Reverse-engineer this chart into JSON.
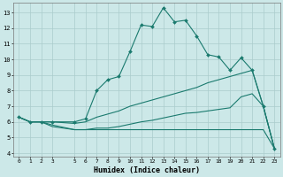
{
  "xlabel": "Humidex (Indice chaleur)",
  "xlim": [
    -0.5,
    23.5
  ],
  "ylim": [
    3.8,
    13.6
  ],
  "xticks": [
    0,
    1,
    2,
    3,
    5,
    6,
    7,
    8,
    9,
    10,
    11,
    12,
    13,
    14,
    15,
    16,
    17,
    18,
    19,
    20,
    21,
    22,
    23
  ],
  "yticks": [
    4,
    5,
    6,
    7,
    8,
    9,
    10,
    11,
    12,
    13
  ],
  "bg_color": "#cce8e8",
  "grid_color": "#aacccc",
  "line_color": "#1a7a6e",
  "line1_x": [
    0,
    1,
    2,
    3,
    5,
    6,
    7,
    8,
    9,
    10,
    11,
    12,
    13,
    14,
    15,
    16,
    17,
    18,
    19,
    20,
    21,
    22,
    23
  ],
  "line1_y": [
    6.3,
    6.0,
    6.0,
    6.0,
    6.0,
    6.2,
    8.0,
    8.7,
    8.9,
    10.5,
    12.2,
    12.1,
    13.3,
    12.4,
    12.5,
    11.5,
    10.3,
    10.15,
    9.3,
    10.1,
    9.3,
    7.0,
    4.3
  ],
  "line2_x": [
    0,
    1,
    2,
    3,
    5,
    6,
    7,
    8,
    9,
    10,
    11,
    12,
    13,
    14,
    15,
    16,
    17,
    18,
    19,
    20,
    21,
    22,
    23
  ],
  "line2_y": [
    6.3,
    6.0,
    6.0,
    6.0,
    5.9,
    6.0,
    6.3,
    6.5,
    6.7,
    7.0,
    7.2,
    7.4,
    7.6,
    7.8,
    8.0,
    8.2,
    8.5,
    8.7,
    8.9,
    9.1,
    9.3,
    7.0,
    4.3
  ],
  "line3_x": [
    0,
    1,
    2,
    3,
    5,
    6,
    7,
    8,
    9,
    10,
    11,
    12,
    13,
    14,
    15,
    16,
    17,
    18,
    19,
    20,
    21,
    22,
    23
  ],
  "line3_y": [
    6.3,
    6.0,
    6.0,
    5.7,
    5.5,
    5.5,
    5.6,
    5.6,
    5.7,
    5.85,
    6.0,
    6.1,
    6.25,
    6.4,
    6.55,
    6.6,
    6.7,
    6.8,
    6.9,
    7.6,
    7.8,
    7.0,
    4.3
  ],
  "line4_x": [
    0,
    1,
    2,
    3,
    5,
    6,
    7,
    8,
    9,
    10,
    11,
    12,
    13,
    14,
    15,
    16,
    17,
    18,
    19,
    20,
    21,
    22,
    23
  ],
  "line4_y": [
    6.3,
    6.0,
    6.0,
    5.8,
    5.5,
    5.5,
    5.5,
    5.5,
    5.5,
    5.5,
    5.5,
    5.5,
    5.5,
    5.5,
    5.5,
    5.5,
    5.5,
    5.5,
    5.5,
    5.5,
    5.5,
    5.5,
    4.3
  ]
}
